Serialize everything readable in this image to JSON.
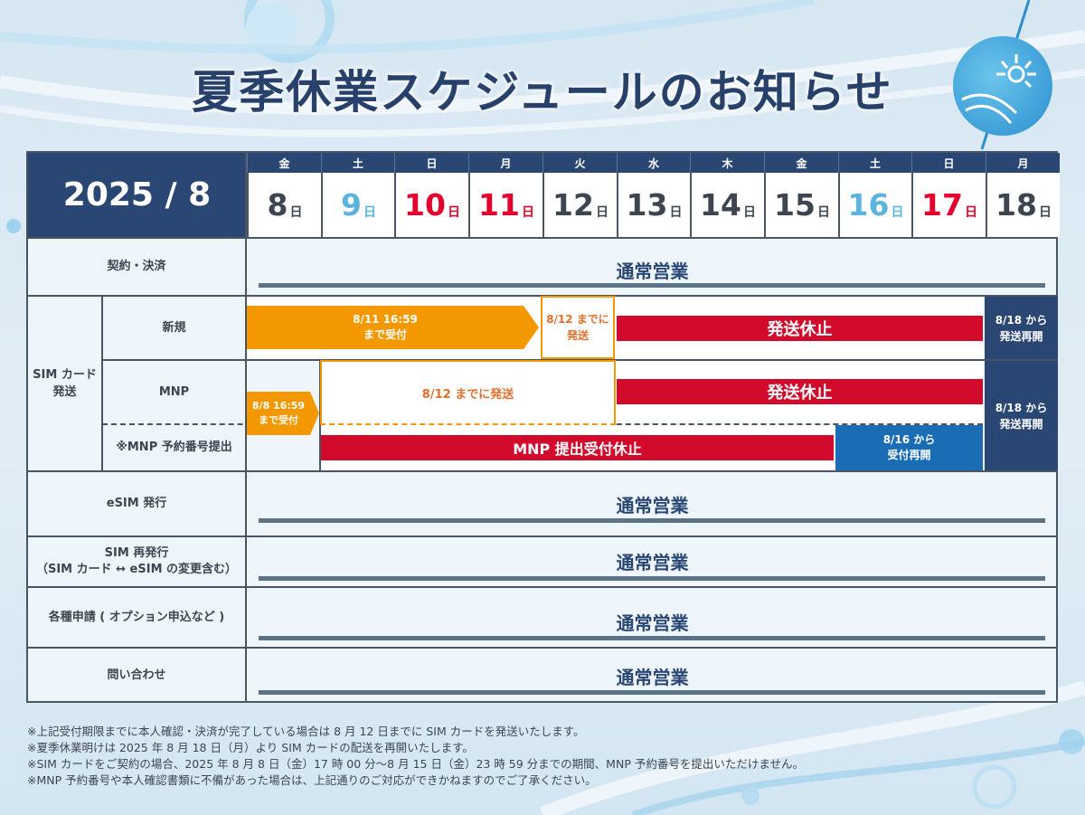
{
  "title": "夏季休業スケジュールのお知らせ",
  "header": {
    "year_month": "2025 / 8",
    "day_unit": "日",
    "days": [
      {
        "dow": "金",
        "num": "8",
        "tone": "black"
      },
      {
        "dow": "土",
        "num": "9",
        "tone": "blue"
      },
      {
        "dow": "日",
        "num": "10",
        "tone": "red"
      },
      {
        "dow": "月",
        "num": "11",
        "tone": "red"
      },
      {
        "dow": "火",
        "num": "12",
        "tone": "black"
      },
      {
        "dow": "水",
        "num": "13",
        "tone": "black"
      },
      {
        "dow": "木",
        "num": "14",
        "tone": "black"
      },
      {
        "dow": "金",
        "num": "15",
        "tone": "black"
      },
      {
        "dow": "土",
        "num": "16",
        "tone": "blue"
      },
      {
        "dow": "日",
        "num": "17",
        "tone": "red"
      },
      {
        "dow": "月",
        "num": "18",
        "tone": "black"
      }
    ]
  },
  "rows": {
    "contract": {
      "label": "契約・決済",
      "status": "通常営業"
    },
    "sim_group_label": "SIM カード\n発送",
    "new": {
      "label": "新規",
      "deadline": "8/11 16:59\nまで受付",
      "ship_by": "8/12 までに\n発送",
      "suspended": "発送休止",
      "resume": "8/18 から\n発送再開"
    },
    "mnp": {
      "label": "MNP",
      "deadline": "8/8 16:59\nまで受付",
      "ship_by": "8/12 までに発送",
      "suspended": "発送休止",
      "resume": "8/18 から\n発送再開"
    },
    "mnp_reserve": {
      "label": "※MNP 予約番号提出",
      "suspended": "MNP 提出受付休止",
      "resume": "8/16 から\n受付再開"
    },
    "esim": {
      "label": "eSIM 発行",
      "status": "通常営業"
    },
    "sim_reissue": {
      "label": "SIM 再発行\n（SIM カード ↔ eSIM の変更含む）",
      "status": "通常営業"
    },
    "applications": {
      "label": "各種申請 ( オプション申込など )",
      "status": "通常営業"
    },
    "inquiry": {
      "label": "問い合わせ",
      "status": "通常営業"
    }
  },
  "notes": [
    "※上記受付期限までに本人確認・決済が完了している場合は 8 月 12 日までに SIM カードを発送いたします。",
    "※夏季休業明けは 2025 年 8 月 18 日（月）より SIM カードの配送を再開いたします。",
    "※SIM カードをご契約の場合、2025 年 8 月 8 日（金）17 時 00 分～8 月 15 日（金）23 時 59 分までの期間、MNP 予約番号を提出いただけません。",
    "※MNP 予約番号や本人確認書類に不備があった場合は、上記通りのご対応ができかねますのでご了承ください。"
  ],
  "colors": {
    "navy": "#2a4673",
    "orange": "#f39800",
    "red": "#d20a2c",
    "blue": "#1a6cb5",
    "sun_blue": "#5bb3de",
    "holiday_red": "#e3002d"
  }
}
